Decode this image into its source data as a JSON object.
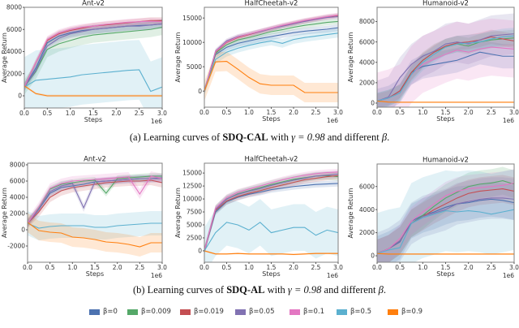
{
  "colors": {
    "β=0": "#4c72b0",
    "β=0.009": "#55a868",
    "β=0.019": "#c44e52",
    "β=0.05": "#8172b2",
    "β=0.1": "#e377c2",
    "β=0.5": "#5bb0cf",
    "β=0.9": "#ff7f0e"
  },
  "legend": [
    "β=0",
    "β=0.009",
    "β=0.019",
    "β=0.05",
    "β=0.1",
    "β=0.5",
    "β=0.9"
  ],
  "captions": [
    {
      "prefix": "(a) Learning curves of ",
      "method": "SDQ-CAL",
      "mid": " with ",
      "math": "γ = 0.98",
      "suffix": " and different ",
      "beta": "β",
      "end": "."
    },
    {
      "prefix": "(b) Learning curves of ",
      "method": "SDQ-AL",
      "mid": " with ",
      "math": "γ = 0.98",
      "suffix": " and different ",
      "beta": "β",
      "end": "."
    }
  ],
  "chart_data": [
    {
      "type": "line",
      "title": "Ant-v2",
      "xlabel": "Steps",
      "ylabel": "Average Return",
      "x_multiplier": "1e6",
      "xlim": [
        0,
        3
      ],
      "ylim": [
        -1100,
        8000
      ],
      "xticks": [
        "0.0",
        "0.5",
        "1.0",
        "1.5",
        "2.0",
        "2.5",
        "3.0"
      ],
      "yticks": [
        "0",
        "2000",
        "4000",
        "6000",
        "8000"
      ],
      "grid": false,
      "x": [
        0,
        0.25,
        0.5,
        0.75,
        1,
        1.25,
        1.5,
        1.75,
        2,
        2.25,
        2.5,
        2.75,
        3
      ],
      "series": [
        {
          "name": "β=0",
          "values": [
            800,
            2500,
            4800,
            5400,
            5700,
            5900,
            6000,
            6100,
            6200,
            6300,
            6350,
            6400,
            6500
          ],
          "band": 400
        },
        {
          "name": "β=0.009",
          "values": [
            800,
            2200,
            4200,
            4700,
            5000,
            5300,
            5500,
            5600,
            5700,
            5800,
            5900,
            6000,
            6200
          ],
          "band": 700
        },
        {
          "name": "β=0.019",
          "values": [
            800,
            3000,
            5000,
            5600,
            5900,
            6100,
            6300,
            6400,
            6500,
            6600,
            6700,
            6800,
            6800
          ],
          "band": 300
        },
        {
          "name": "β=0.05",
          "values": [
            800,
            2300,
            4500,
            5200,
            5600,
            5800,
            6000,
            6100,
            6200,
            6300,
            6300,
            6400,
            6500
          ],
          "band": 400
        },
        {
          "name": "β=0.1",
          "values": [
            800,
            3000,
            5100,
            5700,
            6000,
            6200,
            6300,
            6450,
            6550,
            6650,
            6700,
            6750,
            6700
          ],
          "band": 300
        },
        {
          "name": "β=0.5",
          "values": [
            800,
            1400,
            1500,
            1600,
            1700,
            1900,
            2000,
            2100,
            2200,
            2300,
            2350,
            400,
            800
          ],
          "band": 2700
        },
        {
          "name": "β=0.9",
          "values": [
            900,
            200,
            0,
            0,
            0,
            0,
            0,
            0,
            0,
            0,
            0,
            0,
            0
          ],
          "band": 100
        }
      ]
    },
    {
      "type": "line",
      "title": "HalfCheetah-v2",
      "xlabel": "Steps",
      "ylabel": "Average Return",
      "x_multiplier": "1e6",
      "xlim": [
        0,
        3
      ],
      "ylim": [
        -3300,
        17200
      ],
      "xticks": [
        "0.0",
        "0.5",
        "1.0",
        "1.5",
        "2.0",
        "2.5",
        "3.0"
      ],
      "yticks": [
        "0",
        "5000",
        "10000",
        "15000"
      ],
      "grid": false,
      "x": [
        0,
        0.25,
        0.5,
        0.75,
        1,
        1.25,
        1.5,
        1.75,
        2,
        2.25,
        2.5,
        2.75,
        3
      ],
      "series": [
        {
          "name": "β=0",
          "values": [
            0,
            7500,
            9000,
            9800,
            10300,
            10800,
            11200,
            11600,
            12000,
            12300,
            12500,
            12700,
            13000
          ],
          "band": 700
        },
        {
          "name": "β=0.009",
          "values": [
            0,
            7800,
            9500,
            10500,
            11000,
            11600,
            12200,
            12600,
            13100,
            13500,
            13800,
            14100,
            14300
          ],
          "band": 600
        },
        {
          "name": "β=0.019",
          "values": [
            0,
            8000,
            10000,
            11000,
            11600,
            12200,
            12800,
            13400,
            13900,
            14400,
            14800,
            15200,
            15500
          ],
          "band": 500
        },
        {
          "name": "β=0.05",
          "values": [
            0,
            8200,
            10300,
            11200,
            11700,
            12200,
            12800,
            13300,
            13800,
            14300,
            14700,
            15100,
            15300
          ],
          "band": 500
        },
        {
          "name": "β=0.1",
          "values": [
            0,
            8100,
            10100,
            11100,
            11700,
            12300,
            12900,
            13500,
            14000,
            14500,
            14900,
            15300,
            15600
          ],
          "band": 500
        },
        {
          "name": "β=0.5",
          "values": [
            0,
            6500,
            8000,
            8800,
            9400,
            9900,
            10300,
            9800,
            10600,
            11000,
            11300,
            11600,
            11900
          ],
          "band": 900
        },
        {
          "name": "β=0.9",
          "values": [
            0,
            6000,
            6100,
            4500,
            2800,
            1500,
            1200,
            1200,
            1200,
            -300,
            -300,
            -300,
            -300
          ],
          "band": 2000
        }
      ]
    },
    {
      "type": "line",
      "title": "Humanoid-v2",
      "xlabel": "Steps",
      "ylabel": "Average Return",
      "x_multiplier": "1e6",
      "xlim": [
        0,
        3
      ],
      "ylim": [
        -400,
        9400
      ],
      "xticks": [
        "0.0",
        "0.5",
        "1.0",
        "1.5",
        "2.0",
        "2.5",
        "3.0"
      ],
      "yticks": [
        "0",
        "2000",
        "4000",
        "6000",
        "8000"
      ],
      "grid": false,
      "x": [
        0,
        0.25,
        0.5,
        0.75,
        1,
        1.25,
        1.5,
        1.75,
        2,
        2.25,
        2.5,
        2.75,
        3
      ],
      "series": [
        {
          "name": "β=0",
          "values": [
            200,
            500,
            1200,
            3000,
            3600,
            3800,
            4000,
            4200,
            4600,
            5000,
            4800,
            4600,
            4600
          ],
          "band": 1200
        },
        {
          "name": "β=0.009",
          "values": [
            200,
            500,
            1000,
            3000,
            4200,
            5000,
            5500,
            5800,
            5600,
            6000,
            6200,
            6300,
            6400
          ],
          "band": 800
        },
        {
          "name": "β=0.019",
          "values": [
            200,
            500,
            1200,
            3000,
            4200,
            5000,
            5600,
            5900,
            6000,
            6200,
            6500,
            6300,
            6100
          ],
          "band": 700
        },
        {
          "name": "β=0.05",
          "values": [
            200,
            600,
            2500,
            3800,
            4600,
            5100,
            5800,
            6000,
            5800,
            6200,
            6600,
            6700,
            6800
          ],
          "band": 2000
        },
        {
          "name": "β=0.1",
          "values": [
            200,
            500,
            1000,
            2800,
            3800,
            4300,
            4800,
            5200,
            5000,
            5300,
            5500,
            5400,
            5300
          ],
          "band": 2800
        },
        {
          "name": "β=0.5",
          "values": [
            200,
            500,
            1000,
            2800,
            4000,
            4800,
            5500,
            5800,
            5900,
            6000,
            6300,
            6500,
            6600
          ],
          "band": 800
        },
        {
          "name": "β=0.9",
          "values": [
            200,
            100,
            80,
            80,
            80,
            80,
            80,
            80,
            80,
            80,
            80,
            80,
            80
          ],
          "band": 50
        }
      ]
    },
    {
      "type": "line",
      "title": "Ant-v2",
      "xlabel": "Steps",
      "ylabel": "Average Return",
      "x_multiplier": "1e6",
      "xlim": [
        0,
        3
      ],
      "ylim": [
        -4000,
        8200
      ],
      "xticks": [
        "0.0",
        "0.5",
        "1.0",
        "1.5",
        "2.0",
        "2.5",
        "3.0"
      ],
      "yticks": [
        "-2000",
        "0",
        "2000",
        "4000",
        "6000",
        "8000"
      ],
      "grid": false,
      "x": [
        0,
        0.25,
        0.5,
        0.75,
        1,
        1.25,
        1.5,
        1.75,
        2,
        2.25,
        2.5,
        2.75,
        3
      ],
      "series": [
        {
          "name": "β=0",
          "values": [
            800,
            2500,
            4500,
            5200,
            5400,
            5600,
            5900,
            6000,
            6100,
            6200,
            6300,
            6300,
            6400
          ],
          "band": 400
        },
        {
          "name": "β=0.009",
          "values": [
            800,
            2700,
            5000,
            5600,
            5800,
            6000,
            6100,
            4500,
            6300,
            6400,
            6500,
            6600,
            6600
          ],
          "band": 400
        },
        {
          "name": "β=0.019",
          "values": [
            800,
            2200,
            4000,
            4800,
            5200,
            5400,
            5600,
            5800,
            5900,
            6000,
            6000,
            6100,
            5800
          ],
          "band": 600
        },
        {
          "name": "β=0.05",
          "values": [
            800,
            2500,
            4700,
            5400,
            5700,
            2700,
            5900,
            6000,
            6100,
            6200,
            6300,
            6300,
            6300
          ],
          "band": 500
        },
        {
          "name": "β=0.1",
          "values": [
            800,
            2800,
            5100,
            5700,
            6000,
            6100,
            6200,
            6300,
            6400,
            6500,
            4400,
            6600,
            6300
          ],
          "band": 600
        },
        {
          "name": "β=0.5",
          "values": [
            800,
            200,
            400,
            500,
            500,
            500,
            300,
            300,
            500,
            600,
            700,
            800,
            800
          ],
          "band": 1500
        },
        {
          "name": "β=0.9",
          "values": [
            900,
            -100,
            -300,
            -400,
            -900,
            -1000,
            -1200,
            -1500,
            -1600,
            -1800,
            -2100,
            -1600,
            -1600
          ],
          "band": 1200
        }
      ]
    },
    {
      "type": "line",
      "title": "HalfCheetah-v2",
      "xlabel": "Steps",
      "ylabel": "Average Return",
      "x_multiplier": "1e6",
      "xlim": [
        0,
        3
      ],
      "ylim": [
        -2200,
        16900
      ],
      "xticks": [
        "0.0",
        "0.5",
        "1.0",
        "1.5",
        "2.0",
        "2.5",
        "3.0"
      ],
      "yticks": [
        "0",
        "2500",
        "5000",
        "7500",
        "10000",
        "12500",
        "15000"
      ],
      "grid": false,
      "x": [
        0,
        0.25,
        0.5,
        0.75,
        1,
        1.25,
        1.5,
        1.75,
        2,
        2.25,
        2.5,
        2.75,
        3
      ],
      "series": [
        {
          "name": "β=0",
          "values": [
            0,
            7500,
            9500,
            10300,
            10900,
            11300,
            11800,
            12100,
            12400,
            12600,
            12800,
            12900,
            13000
          ],
          "band": 600
        },
        {
          "name": "β=0.009",
          "values": [
            0,
            8000,
            10000,
            11000,
            11600,
            12200,
            12800,
            13300,
            13800,
            14100,
            14400,
            14500,
            14300
          ],
          "band": 800
        },
        {
          "name": "β=0.019",
          "values": [
            0,
            7800,
            9600,
            10500,
            11100,
            11600,
            12200,
            12700,
            13200,
            13700,
            14000,
            14300,
            14500
          ],
          "band": 700
        },
        {
          "name": "β=0.05",
          "values": [
            0,
            8000,
            10000,
            10900,
            11500,
            12000,
            12600,
            13100,
            13600,
            14000,
            14400,
            14600,
            14800
          ],
          "band": 700
        },
        {
          "name": "β=0.1",
          "values": [
            0,
            8200,
            10300,
            11300,
            11900,
            12500,
            13100,
            13700,
            14200,
            14600,
            14900,
            15100,
            15200
          ],
          "band": 600
        },
        {
          "name": "β=0.5",
          "values": [
            0,
            3500,
            5500,
            5000,
            4000,
            5500,
            3500,
            4000,
            4500,
            4500,
            3000,
            4000,
            3500
          ],
          "band": 4500
        },
        {
          "name": "β=0.9",
          "values": [
            0,
            -600,
            -600,
            -500,
            -600,
            -600,
            -600,
            -600,
            -700,
            -600,
            -500,
            -500,
            -500
          ],
          "band": 150
        }
      ]
    },
    {
      "type": "line",
      "title": "Humanoid-v2",
      "xlabel": "Steps",
      "ylabel": "Average Return",
      "x_multiplier": "1e6",
      "xlim": [
        0,
        3
      ],
      "ylim": [
        -560,
        7950
      ],
      "xticks": [
        "0.0",
        "0.5",
        "1.0",
        "1.5",
        "2.0",
        "2.5",
        "3.0"
      ],
      "yticks": [
        "0",
        "2000",
        "4000",
        "6000"
      ],
      "grid": false,
      "x": [
        0,
        0.25,
        0.5,
        0.75,
        1,
        1.25,
        1.5,
        1.75,
        2,
        2.25,
        2.5,
        2.75,
        3
      ],
      "series": [
        {
          "name": "β=0",
          "values": [
            200,
            600,
            1200,
            3000,
            3500,
            3800,
            4200,
            4500,
            4600,
            4800,
            4900,
            4800,
            4600
          ],
          "band": 1500
        },
        {
          "name": "β=0.009",
          "values": [
            200,
            600,
            1300,
            2800,
            3500,
            4300,
            5000,
            5500,
            6000,
            6200,
            6300,
            6500,
            6200
          ],
          "band": 1200
        },
        {
          "name": "β=0.019",
          "values": [
            200,
            600,
            1300,
            2800,
            3400,
            4000,
            4500,
            5000,
            5400,
            5600,
            5700,
            5800,
            5600
          ],
          "band": 1200
        },
        {
          "name": "β=0.05",
          "values": [
            200,
            600,
            1300,
            2800,
            3400,
            3700,
            4000,
            4500,
            4700,
            4900,
            5000,
            5000,
            4900
          ],
          "band": 1800
        },
        {
          "name": "β=0.1",
          "values": [
            200,
            600,
            1500,
            3000,
            3800,
            4500,
            5200,
            5600,
            5800,
            5900,
            6000,
            6100,
            6300
          ],
          "band": 1200
        },
        {
          "name": "β=0.5",
          "values": [
            200,
            500,
            700,
            2800,
            3300,
            3600,
            3900,
            3800,
            3900,
            3800,
            3600,
            3800,
            4000
          ],
          "band": 3500
        },
        {
          "name": "β=0.9",
          "values": [
            200,
            150,
            150,
            150,
            150,
            150,
            150,
            150,
            150,
            150,
            150,
            150,
            150
          ],
          "band": 60
        }
      ]
    }
  ]
}
